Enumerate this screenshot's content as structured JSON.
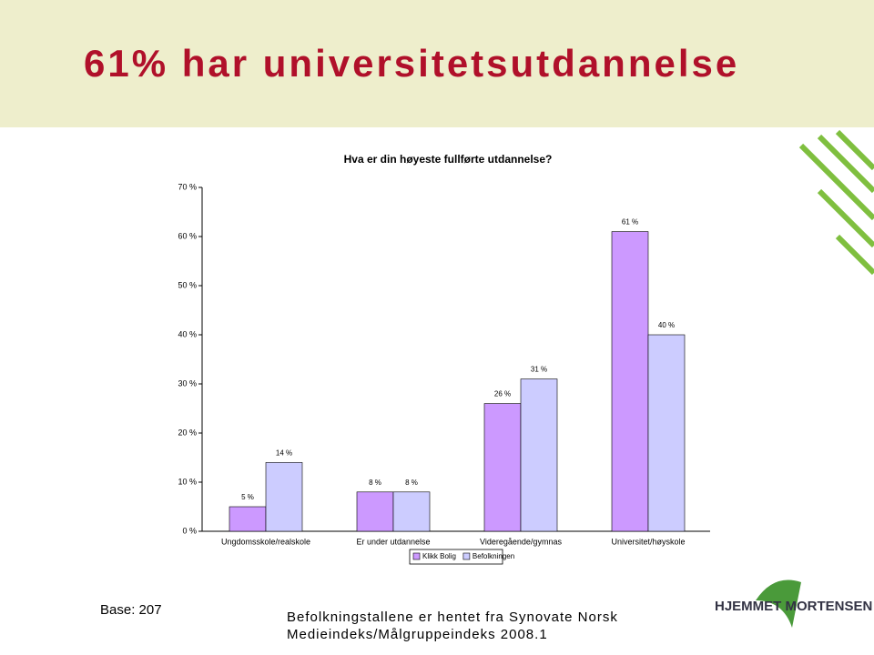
{
  "header": {
    "title": "61% har universitetsutdannelse"
  },
  "chart_data": {
    "type": "bar",
    "title": "Hva er din høyeste fullførte utdannelse?",
    "categories": [
      "Ungdomsskole/realskole",
      "Er under utdannelse",
      "Videregående/gymnas",
      "Universitet/høyskole"
    ],
    "series": [
      {
        "name": "Klikk Bolig",
        "color": "#cc99ff",
        "values": [
          5,
          8,
          26,
          61
        ],
        "value_labels": [
          "5 %",
          "8 %",
          "26 %",
          "61 %"
        ]
      },
      {
        "name": "Befolkningen",
        "color": "#ccccff",
        "values": [
          14,
          8,
          31,
          40
        ],
        "value_labels": [
          "14 %",
          "8 %",
          "31 %",
          "40 %"
        ]
      }
    ],
    "ylim": [
      0,
      70
    ],
    "yticks": [
      {
        "value": 0,
        "label": "0 %"
      },
      {
        "value": 10,
        "label": "10 %"
      },
      {
        "value": 20,
        "label": "20 %"
      },
      {
        "value": 30,
        "label": "30 %"
      },
      {
        "value": 40,
        "label": "40 %"
      },
      {
        "value": 50,
        "label": "50 %"
      },
      {
        "value": 60,
        "label": "60 %"
      },
      {
        "value": 70,
        "label": "70 %"
      }
    ],
    "legend": "bottom"
  },
  "footer": {
    "base": "Base: 207",
    "source_lines": [
      "Befolkningstallene er hentet fra Synovate Norsk",
      "Medieindeks/Målgruppeindeks 2008.1"
    ],
    "logo": "HJEMMET MORTENSEN"
  }
}
